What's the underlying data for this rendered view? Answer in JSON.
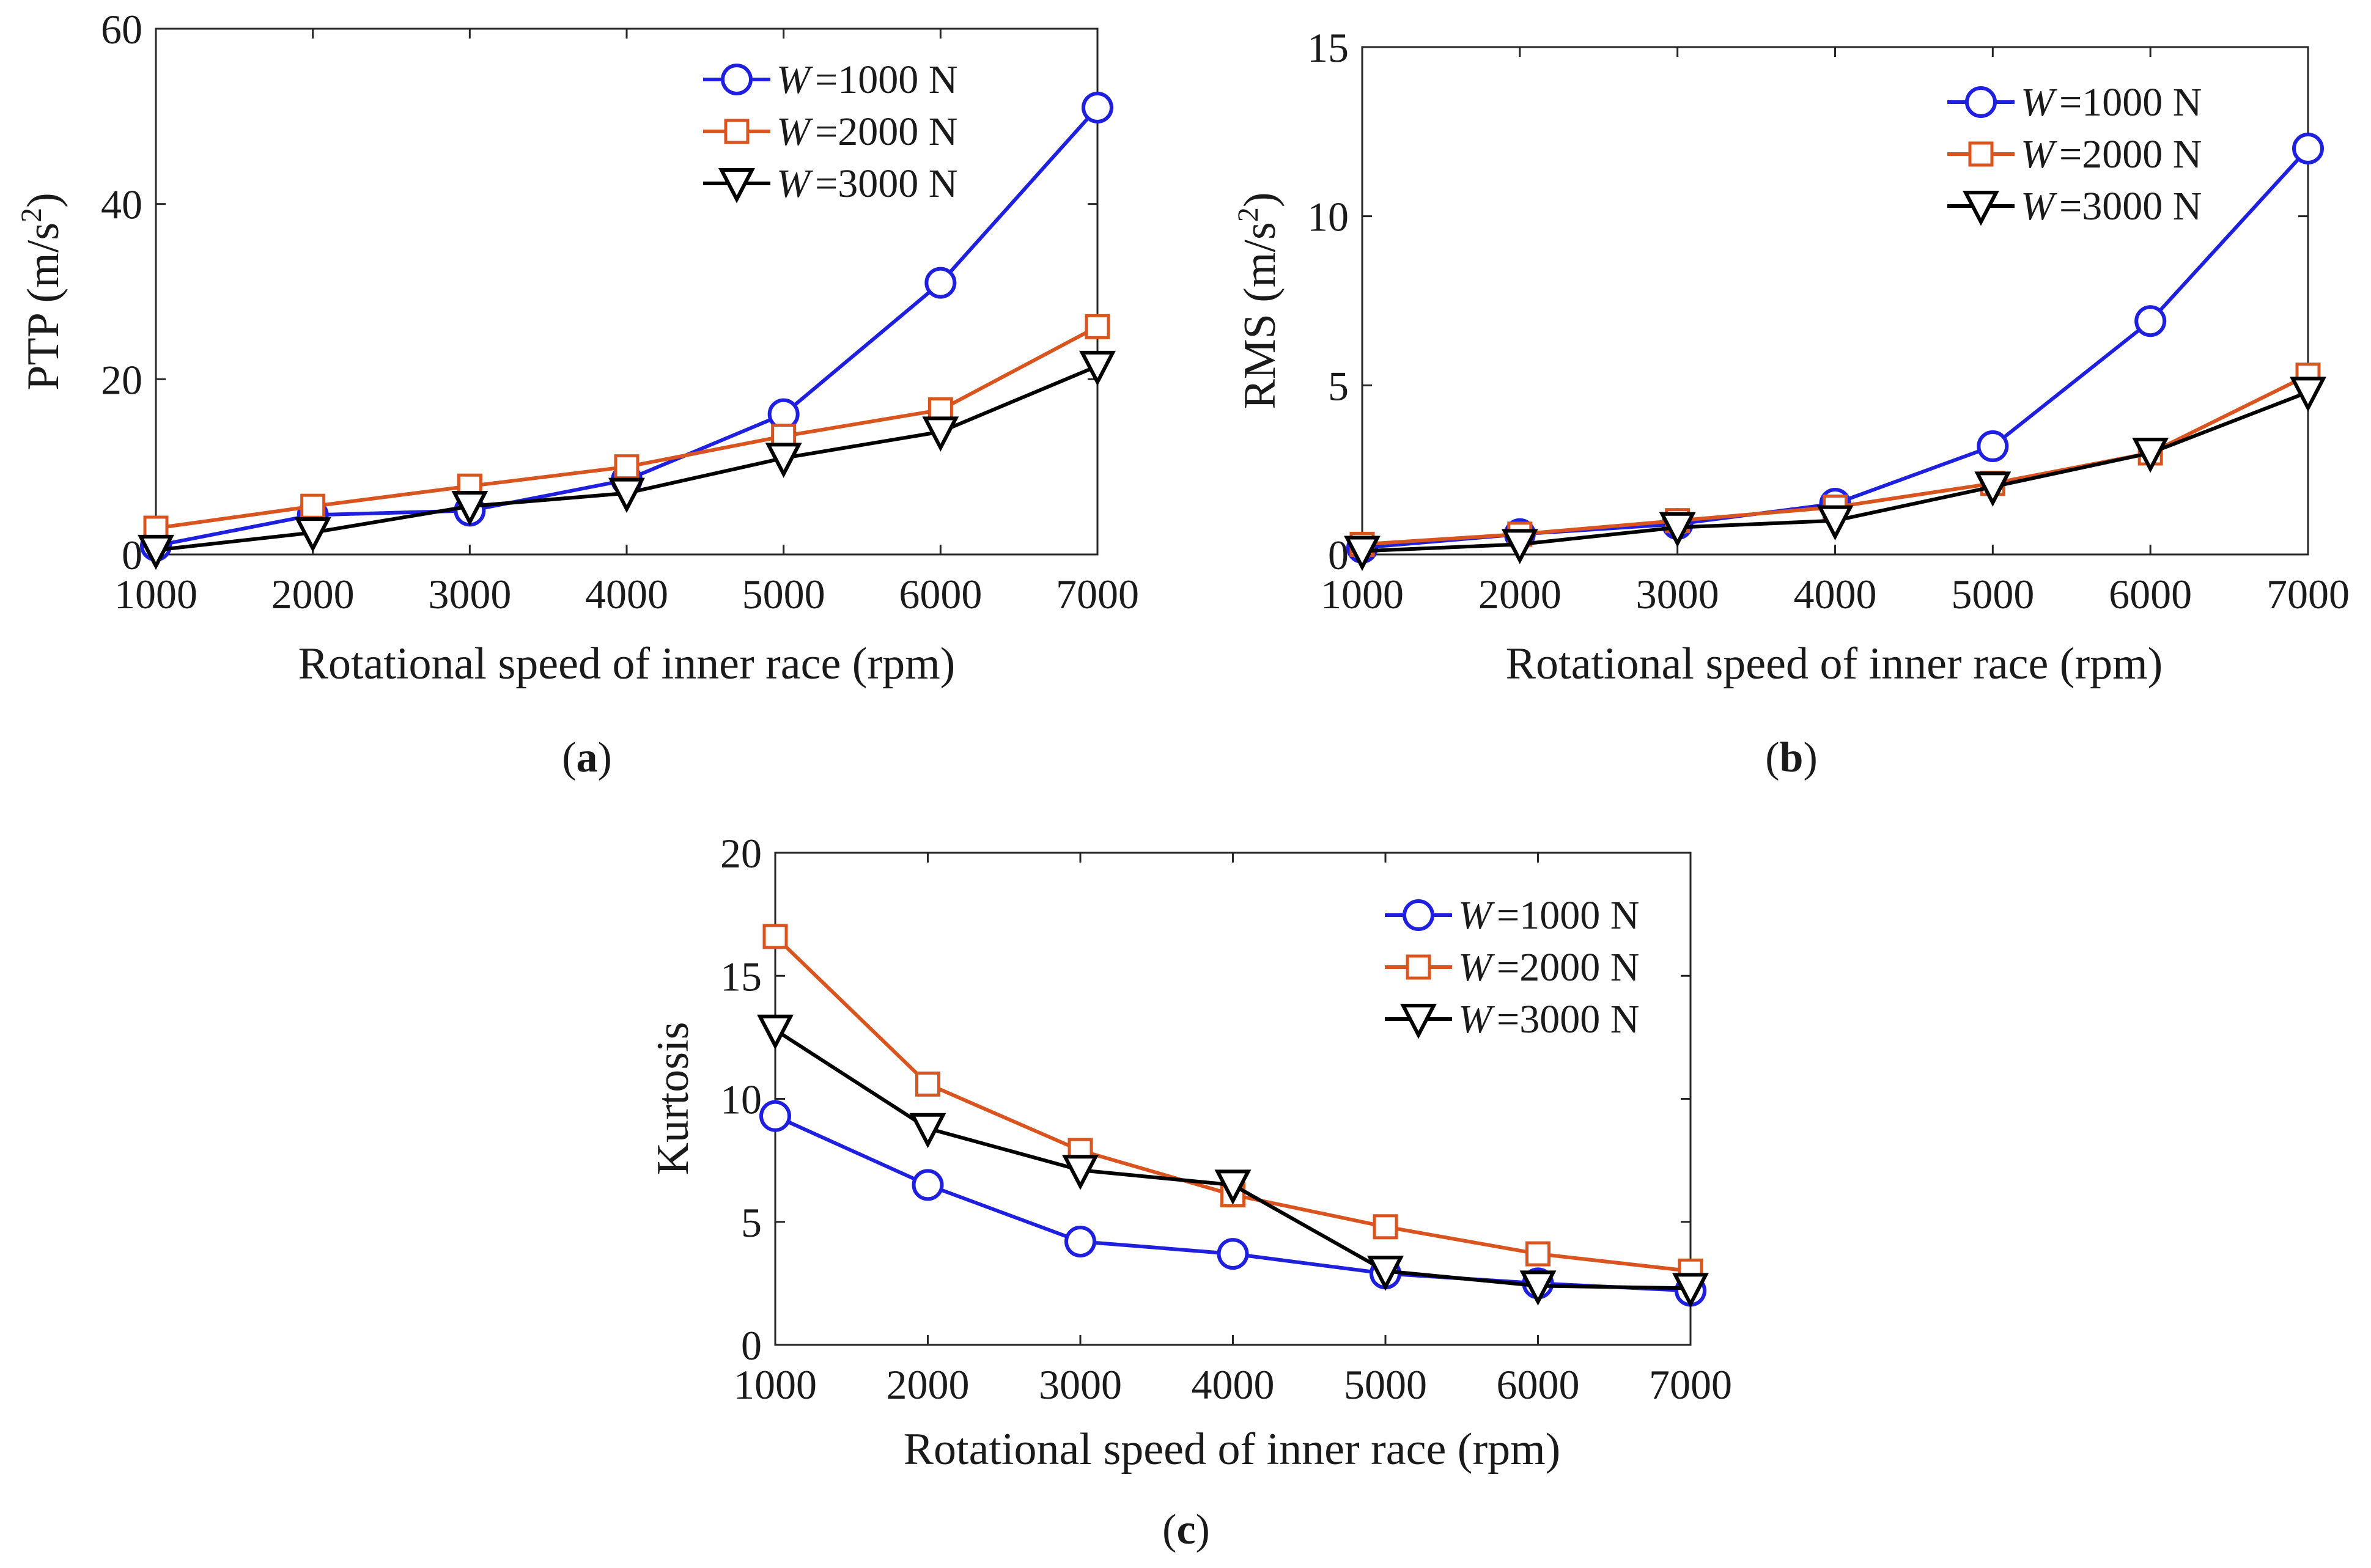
{
  "chart_data": [
    {
      "id": "a",
      "type": "line",
      "panel_label": "a",
      "xlabel": "Rotational speed of inner race (rpm)",
      "ylabel_main": "PTP (m/s",
      "ylabel_sup": "2",
      "ylabel_close": ")",
      "x": [
        1000,
        2000,
        3000,
        4000,
        5000,
        6000,
        7000
      ],
      "xlim": [
        1000,
        7000
      ],
      "ylim": [
        0,
        60
      ],
      "yticks": [
        0,
        20,
        40,
        60
      ],
      "ytick_labels": [
        "0",
        "20",
        "40",
        "60"
      ],
      "xtick_labels": [
        "1000",
        "2000",
        "3000",
        "4000",
        "5000",
        "6000",
        "7000"
      ],
      "legend_location": "top-right",
      "series": [
        {
          "name": "=1000 N",
          "values": [
            1.0,
            4.5,
            5.0,
            8.5,
            16.0,
            31.0,
            51.0
          ]
        },
        {
          "name": "=2000 N",
          "values": [
            3.0,
            5.5,
            7.8,
            10.0,
            13.5,
            16.5,
            26.0
          ]
        },
        {
          "name": "=3000 N",
          "values": [
            0.5,
            2.5,
            5.5,
            7.0,
            11.0,
            14.0,
            21.5
          ]
        }
      ]
    },
    {
      "id": "b",
      "type": "line",
      "panel_label": "b",
      "xlabel": "Rotational speed of inner race (rpm)",
      "ylabel_main": "RMS (m/s",
      "ylabel_sup": "2",
      "ylabel_close": ")",
      "x": [
        1000,
        2000,
        3000,
        4000,
        5000,
        6000,
        7000
      ],
      "xlim": [
        1000,
        7000
      ],
      "ylim": [
        0,
        15
      ],
      "yticks": [
        0,
        5,
        10,
        15
      ],
      "ytick_labels": [
        "0",
        "5",
        "10",
        "15"
      ],
      "xtick_labels": [
        "1000",
        "2000",
        "3000",
        "4000",
        "5000",
        "6000",
        "7000"
      ],
      "legend_location": "top-right",
      "series": [
        {
          "name": "=1000 N",
          "values": [
            0.2,
            0.6,
            0.9,
            1.5,
            3.2,
            6.9,
            12.0
          ]
        },
        {
          "name": "=2000 N",
          "values": [
            0.3,
            0.6,
            1.0,
            1.4,
            2.1,
            3.0,
            5.3
          ]
        },
        {
          "name": "=3000 N",
          "values": [
            0.1,
            0.3,
            0.8,
            1.0,
            2.0,
            3.0,
            4.8
          ]
        }
      ]
    },
    {
      "id": "c",
      "type": "line",
      "panel_label": "c",
      "xlabel": "Rotational speed of inner race (rpm)",
      "ylabel_main": "Kurtosis",
      "ylabel_sup": "",
      "ylabel_close": "",
      "x": [
        1000,
        2000,
        3000,
        4000,
        5000,
        6000,
        7000
      ],
      "xlim": [
        1000,
        7000
      ],
      "ylim": [
        0,
        20
      ],
      "yticks": [
        0,
        5,
        10,
        15,
        20
      ],
      "ytick_labels": [
        "0",
        "5",
        "10",
        "15",
        "20"
      ],
      "xtick_labels": [
        "1000",
        "2000",
        "3000",
        "4000",
        "5000",
        "6000",
        "7000"
      ],
      "legend_location": "top-right",
      "series": [
        {
          "name": "=1000 N",
          "values": [
            9.3,
            6.5,
            4.2,
            3.7,
            2.9,
            2.5,
            2.2
          ]
        },
        {
          "name": "=2000 N",
          "values": [
            16.6,
            10.6,
            7.9,
            6.1,
            4.8,
            3.7,
            3.0
          ]
        },
        {
          "name": "=3000 N",
          "values": [
            12.8,
            8.8,
            7.1,
            6.5,
            3.0,
            2.4,
            2.3
          ]
        }
      ]
    }
  ],
  "legend_symbol": "W",
  "series_colors": [
    "#1f1fe0",
    "#d9541e",
    "#000000"
  ],
  "series_markers": [
    "circle",
    "square",
    "triangle-down"
  ]
}
